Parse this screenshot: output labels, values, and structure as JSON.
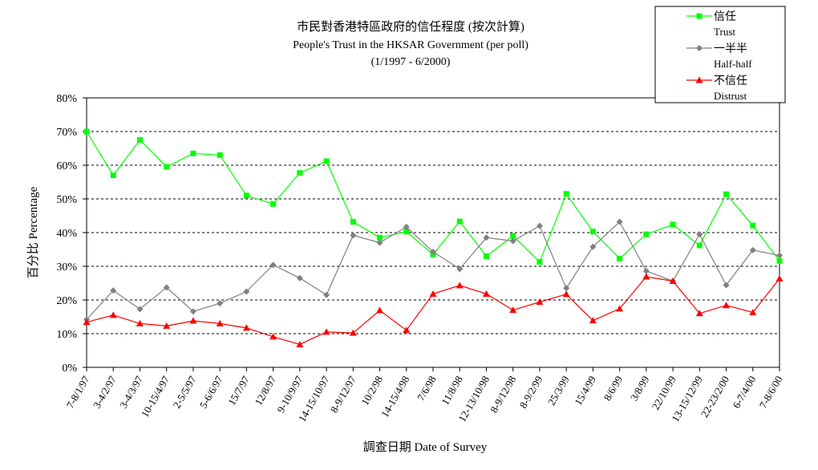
{
  "chart_data": {
    "type": "line",
    "title": "市民對香港特區政府的信任程度 (按次計算)",
    "subtitle": "People's Trust in the HKSAR Government (per poll)",
    "period": "(1/1997 -  6/2000)",
    "xlabel": "調查日期 Date of Survey",
    "ylabel": "百分比 Percentage",
    "ylim": [
      0,
      80
    ],
    "yticks": [
      "0%",
      "10%",
      "20%",
      "30%",
      "40%",
      "50%",
      "60%",
      "70%",
      "80%"
    ],
    "grid": true,
    "legend_position": "top-right",
    "categories": [
      "7-8/1/97",
      "3-4/2/97",
      "3-4/3/97",
      "10-15/4/97",
      "2-5/5/97",
      "5-6/6/97",
      "15/7/97",
      "12/8/97",
      "9-10/9/97",
      "14-15/10/97",
      "8-9/12/97",
      "10/2/98",
      "14-15/4/98",
      "7/6/98",
      "11/8/98",
      "12-13/10/98",
      "8-9/12/98",
      "8-9/2/99",
      "25/3/99",
      "15/4/99",
      "8/6/99",
      "3/8/99",
      "22/10/99",
      "13-15/12/99",
      "22-23/2/00",
      "6-7/4/00",
      "7-8/6/00"
    ],
    "series": [
      {
        "zh": "信任",
        "en": "Trust",
        "color": "#00ff00",
        "marker": "square",
        "values": [
          70.0,
          57.0,
          67.5,
          59.5,
          63.5,
          63.0,
          51.0,
          48.5,
          57.7,
          61.2,
          43.2,
          38.5,
          40.3,
          33.5,
          43.3,
          33.0,
          39.0,
          31.3,
          51.5,
          40.3,
          32.3,
          39.5,
          42.4,
          36.2,
          51.4,
          42.1,
          31.6
        ]
      },
      {
        "zh": "一半半",
        "en": "Half-half",
        "color": "#808080",
        "marker": "diamond",
        "values": [
          14.2,
          22.8,
          17.3,
          23.7,
          16.6,
          19.0,
          22.5,
          30.4,
          26.5,
          21.5,
          39.2,
          37.0,
          41.7,
          34.3,
          29.2,
          38.5,
          37.5,
          42.0,
          23.5,
          35.8,
          43.2,
          28.6,
          25.6,
          39.5,
          24.4,
          34.8,
          33.2
        ]
      },
      {
        "zh": "不信任",
        "en": "Distrust",
        "color": "#ff0000",
        "marker": "triangle",
        "values": [
          13.4,
          15.5,
          13.0,
          12.3,
          13.8,
          13.0,
          11.7,
          9.1,
          6.8,
          10.5,
          10.2,
          16.9,
          11.0,
          21.8,
          24.3,
          21.8,
          17.0,
          19.4,
          21.7,
          13.9,
          17.4,
          26.9,
          25.6,
          16.0,
          18.4,
          16.3,
          26.3
        ]
      }
    ]
  }
}
